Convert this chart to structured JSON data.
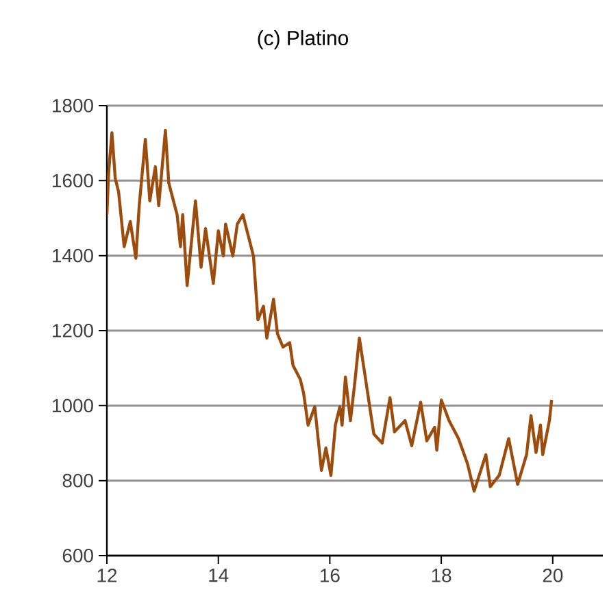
{
  "chart_data": {
    "type": "line",
    "title": "(c) Platino",
    "xlim": [
      12,
      20.9
    ],
    "xticks": [
      12,
      14,
      16,
      18,
      20
    ],
    "ylim": [
      600,
      1800
    ],
    "yticks": [
      600,
      800,
      1000,
      1200,
      1400,
      1600,
      1800
    ],
    "grid": "y",
    "marker": "none",
    "line_style": "solid",
    "series": [
      {
        "color": "#9c4c0c",
        "x": [
          12.0,
          12.03,
          12.09,
          12.15,
          12.21,
          12.31,
          12.42,
          12.52,
          12.58,
          12.69,
          12.77,
          12.87,
          12.93,
          13.05,
          13.11,
          13.26,
          13.32,
          13.36,
          13.44,
          13.59,
          13.69,
          13.77,
          13.91,
          14.0,
          14.09,
          14.13,
          14.26,
          14.34,
          14.44,
          14.63,
          14.71,
          14.81,
          14.87,
          14.99,
          15.06,
          15.16,
          15.28,
          15.34,
          15.47,
          15.53,
          15.61,
          15.73,
          15.85,
          15.93,
          16.02,
          16.1,
          16.18,
          16.22,
          16.28,
          16.37,
          16.45,
          16.53,
          16.63,
          16.79,
          16.94,
          17.08,
          17.16,
          17.35,
          17.47,
          17.63,
          17.74,
          17.88,
          17.92,
          18.0,
          18.14,
          18.31,
          18.47,
          18.59,
          18.8,
          18.88,
          19.04,
          19.21,
          19.37,
          19.53,
          19.61,
          19.7,
          19.78,
          19.82,
          19.94,
          19.98
        ],
        "values": [
          1509,
          1619,
          1728,
          1606,
          1570,
          1424,
          1491,
          1393,
          1533,
          1710,
          1546,
          1637,
          1533,
          1734,
          1594,
          1509,
          1424,
          1509,
          1320,
          1546,
          1369,
          1472,
          1326,
          1466,
          1399,
          1484,
          1399,
          1484,
          1509,
          1399,
          1229,
          1265,
          1180,
          1284,
          1192,
          1156,
          1168,
          1107,
          1070,
          1033,
          948,
          997,
          827,
          887,
          814,
          948,
          997,
          948,
          1076,
          960,
          1064,
          1180,
          1082,
          924,
          900,
          1021,
          930,
          960,
          893,
          1009,
          906,
          942,
          881,
          1015,
          960,
          912,
          845,
          772,
          869,
          784,
          814,
          912,
          790,
          869,
          973,
          875,
          948,
          869,
          960,
          1015
        ]
      }
    ]
  }
}
